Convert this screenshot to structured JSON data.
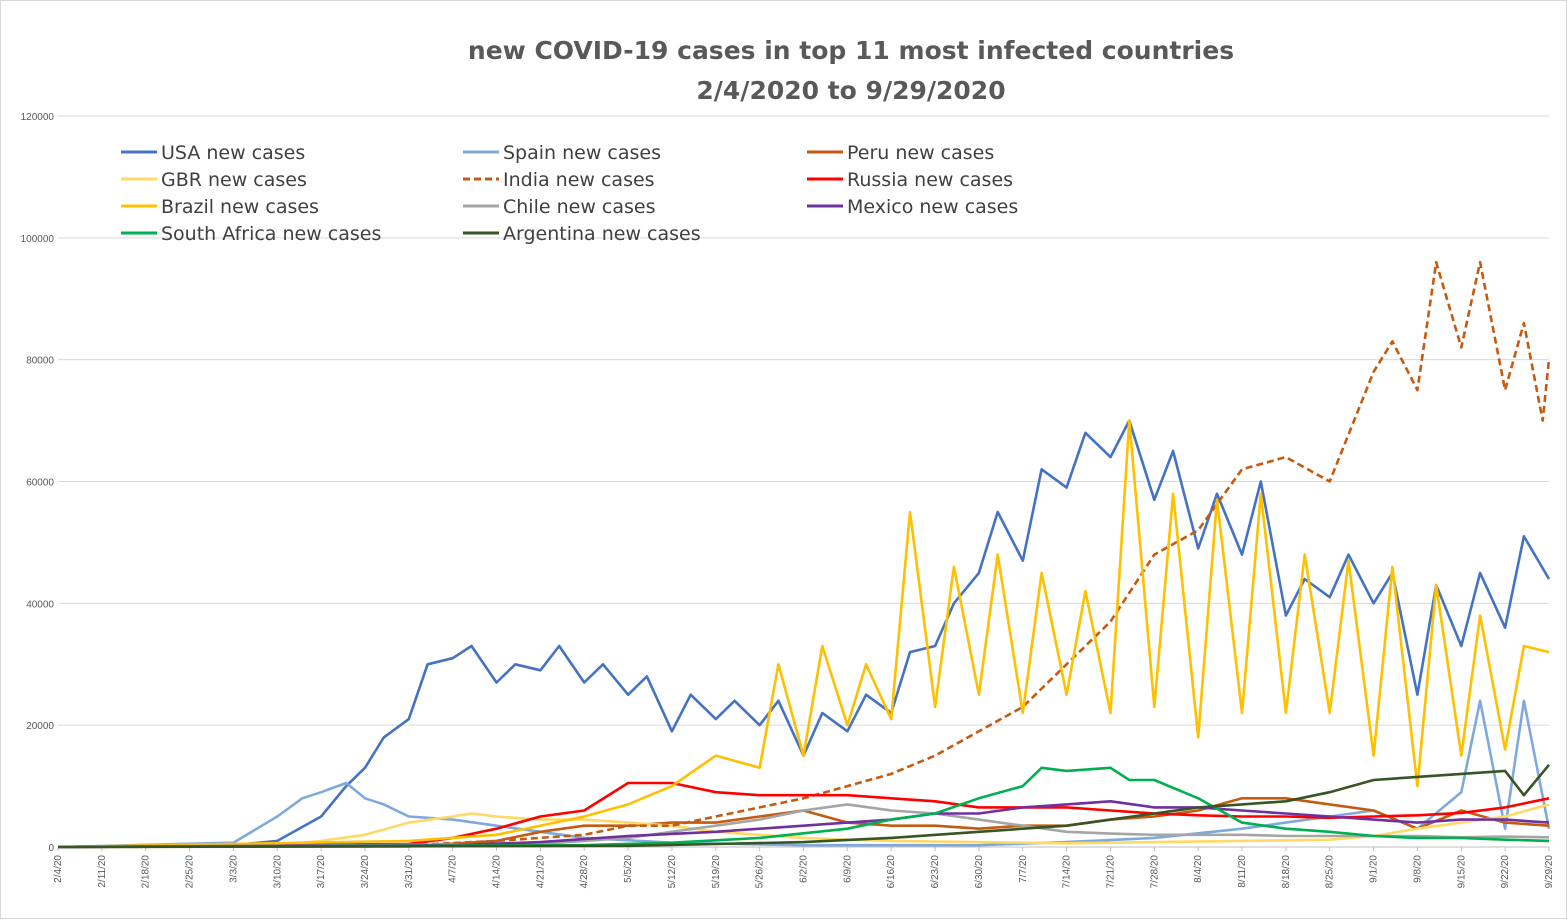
{
  "chart_data": {
    "type": "line",
    "title": "new COVID-19 cases in top 11 most infected countries",
    "subtitle": "2/4/2020 to 9/29/2020",
    "xlabel": "",
    "ylabel": "",
    "x_start": "2/4/20",
    "x_end": "9/29/20",
    "x_tick_labels": [
      "2/4/20",
      "2/11/20",
      "2/18/20",
      "2/25/20",
      "3/3/20",
      "3/10/20",
      "3/17/20",
      "3/24/20",
      "3/31/20",
      "4/7/20",
      "4/14/20",
      "4/21/20",
      "4/28/20",
      "5/5/20",
      "5/12/20",
      "5/19/20",
      "5/26/20",
      "6/2/20",
      "6/9/20",
      "6/16/20",
      "6/23/20",
      "6/30/20",
      "7/7/20",
      "7/14/20",
      "7/21/20",
      "7/28/20",
      "8/4/20",
      "8/11/20",
      "8/18/20",
      "8/25/20",
      "9/1/20",
      "9/8/20",
      "9/15/20",
      "9/22/20",
      "9/29/20"
    ],
    "y_ticks": [
      0,
      20000,
      40000,
      60000,
      80000,
      100000,
      120000
    ],
    "ylim": [
      0,
      120000
    ],
    "grid": true,
    "legend_position": "top-left",
    "series": [
      {
        "name": "USA new cases",
        "color": "#4472c4",
        "dash": false,
        "x": [
          "2/4/20",
          "3/3/20",
          "3/10/20",
          "3/17/20",
          "3/21/20",
          "3/24/20",
          "3/27/20",
          "3/31/20",
          "4/3/20",
          "4/7/20",
          "4/10/20",
          "4/14/20",
          "4/17/20",
          "4/21/20",
          "4/24/20",
          "4/28/20",
          "5/1/20",
          "5/5/20",
          "5/8/20",
          "5/12/20",
          "5/15/20",
          "5/19/20",
          "5/22/20",
          "5/26/20",
          "5/29/20",
          "6/2/20",
          "6/5/20",
          "6/9/20",
          "6/12/20",
          "6/16/20",
          "6/19/20",
          "6/23/20",
          "6/26/20",
          "6/30/20",
          "7/3/20",
          "7/7/20",
          "7/10/20",
          "7/14/20",
          "7/17/20",
          "7/21/20",
          "7/24/20",
          "7/28/20",
          "7/31/20",
          "8/4/20",
          "8/7/20",
          "8/11/20",
          "8/14/20",
          "8/18/20",
          "8/21/20",
          "8/25/20",
          "8/28/20",
          "9/1/20",
          "9/4/20",
          "9/8/20",
          "9/11/20",
          "9/15/20",
          "9/18/20",
          "9/22/20",
          "9/25/20",
          "9/29/20"
        ],
        "y": [
          0,
          300,
          1000,
          5000,
          10000,
          13000,
          18000,
          21000,
          30000,
          31000,
          33000,
          27000,
          30000,
          29000,
          33000,
          27000,
          30000,
          25000,
          28000,
          19000,
          25000,
          21000,
          24000,
          20000,
          24000,
          15000,
          22000,
          19000,
          25000,
          22000,
          32000,
          33000,
          40000,
          45000,
          55000,
          47000,
          62000,
          59000,
          68000,
          64000,
          70000,
          57000,
          65000,
          49000,
          58000,
          48000,
          60000,
          38000,
          44000,
          41000,
          48000,
          40000,
          45000,
          25000,
          43000,
          33000,
          45000,
          36000,
          51000,
          44000
        ]
      },
      {
        "name": "Spain new cases",
        "color": "#7fa9dc",
        "dash": false,
        "x": [
          "2/4/20",
          "3/3/20",
          "3/10/20",
          "3/14/20",
          "3/17/20",
          "3/21/20",
          "3/24/20",
          "3/27/20",
          "3/31/20",
          "4/7/20",
          "4/14/20",
          "4/21/20",
          "4/28/20",
          "5/12/20",
          "6/2/20",
          "6/30/20",
          "7/14/20",
          "7/28/20",
          "8/11/20",
          "8/18/20",
          "8/25/20",
          "9/1/20",
          "9/8/20",
          "9/15/20",
          "9/18/20",
          "9/22/20",
          "9/25/20",
          "9/29/20"
        ],
        "y": [
          0,
          700,
          5000,
          8000,
          9000,
          10500,
          8000,
          7000,
          5000,
          4500,
          3500,
          2500,
          1500,
          700,
          300,
          300,
          800,
          1500,
          3000,
          4000,
          5000,
          6000,
          3000,
          9000,
          24000,
          3000,
          24000,
          3000
        ]
      },
      {
        "name": "Peru new cases",
        "color": "#c55a11",
        "dash": false,
        "x": [
          "2/4/20",
          "3/31/20",
          "4/14/20",
          "4/21/20",
          "4/28/20",
          "5/5/20",
          "5/12/20",
          "5/19/20",
          "5/26/20",
          "6/2/20",
          "6/9/20",
          "6/16/20",
          "6/23/20",
          "6/30/20",
          "7/7/20",
          "7/14/20",
          "7/21/20",
          "7/28/20",
          "8/4/20",
          "8/11/20",
          "8/18/20",
          "8/25/20",
          "9/1/20",
          "9/8/20",
          "9/15/20",
          "9/22/20",
          "9/29/20"
        ],
        "y": [
          0,
          100,
          1000,
          2500,
          3500,
          3500,
          4000,
          4000,
          5000,
          6000,
          4000,
          3500,
          3500,
          3000,
          3500,
          3500,
          4500,
          5000,
          6000,
          8000,
          8000,
          7000,
          6000,
          3000,
          6000,
          4000,
          3500
        ]
      },
      {
        "name": "GBR new cases",
        "color": "#ffd966",
        "dash": false,
        "x": [
          "2/4/20",
          "3/10/20",
          "3/17/20",
          "3/24/20",
          "3/31/20",
          "4/7/20",
          "4/10/20",
          "4/14/20",
          "4/21/20",
          "4/28/20",
          "5/5/20",
          "5/12/20",
          "5/19/20",
          "5/26/20",
          "6/2/20",
          "6/9/20",
          "6/16/20",
          "6/23/20",
          "6/30/20",
          "7/14/20",
          "7/28/20",
          "8/11/20",
          "8/25/20",
          "9/1/20",
          "9/8/20",
          "9/15/20",
          "9/22/20",
          "9/29/20"
        ],
        "y": [
          0,
          300,
          1000,
          2000,
          4000,
          5000,
          5500,
          5000,
          4500,
          4500,
          4000,
          3500,
          2500,
          2000,
          1500,
          1200,
          1000,
          900,
          800,
          600,
          800,
          1000,
          1200,
          1800,
          3000,
          4000,
          5000,
          7000
        ]
      },
      {
        "name": "India new cases",
        "color": "#c55a11",
        "dash": true,
        "x": [
          "2/4/20",
          "3/31/20",
          "4/14/20",
          "4/28/20",
          "5/5/20",
          "5/12/20",
          "5/19/20",
          "5/26/20",
          "6/2/20",
          "6/9/20",
          "6/16/20",
          "6/23/20",
          "6/30/20",
          "7/7/20",
          "7/14/20",
          "7/21/20",
          "7/28/20",
          "8/4/20",
          "8/11/20",
          "8/18/20",
          "8/25/20",
          "9/1/20",
          "9/4/20",
          "9/8/20",
          "9/11/20",
          "9/15/20",
          "9/18/20",
          "9/22/20",
          "9/25/20",
          "9/28/20",
          "9/29/20"
        ],
        "y": [
          0,
          300,
          1000,
          2000,
          3500,
          3500,
          5000,
          6500,
          8000,
          10000,
          12000,
          15000,
          19000,
          23000,
          30000,
          37000,
          48000,
          52000,
          62000,
          64000,
          60000,
          78000,
          83000,
          75000,
          96000,
          82000,
          96000,
          75000,
          86000,
          70000,
          80000
        ]
      },
      {
        "name": "Russia new cases",
        "color": "#ff0000",
        "dash": false,
        "x": [
          "2/4/20",
          "3/31/20",
          "4/7/20",
          "4/14/20",
          "4/21/20",
          "4/28/20",
          "5/5/20",
          "5/12/20",
          "5/19/20",
          "5/26/20",
          "6/2/20",
          "6/9/20",
          "6/16/20",
          "6/23/20",
          "6/30/20",
          "7/7/20",
          "7/14/20",
          "7/21/20",
          "7/28/20",
          "8/4/20",
          "8/11/20",
          "8/18/20",
          "8/25/20",
          "9/1/20",
          "9/8/20",
          "9/15/20",
          "9/22/20",
          "9/29/20"
        ],
        "y": [
          0,
          500,
          1500,
          3000,
          5000,
          6000,
          10500,
          10500,
          9000,
          8500,
          8500,
          8500,
          8000,
          7500,
          6500,
          6500,
          6500,
          6000,
          5500,
          5200,
          5000,
          5000,
          4800,
          5000,
          5200,
          5600,
          6500,
          8000
        ]
      },
      {
        "name": "Brazil new cases",
        "color": "#ffc000",
        "dash": false,
        "x": [
          "2/4/20",
          "3/31/20",
          "4/14/20",
          "4/28/20",
          "5/5/20",
          "5/12/20",
          "5/19/20",
          "5/26/20",
          "5/29/20",
          "6/2/20",
          "6/5/20",
          "6/9/20",
          "6/12/20",
          "6/16/20",
          "6/19/20",
          "6/23/20",
          "6/26/20",
          "6/30/20",
          "7/3/20",
          "7/7/20",
          "7/10/20",
          "7/14/20",
          "7/17/20",
          "7/21/20",
          "7/24/20",
          "7/28/20",
          "7/31/20",
          "8/4/20",
          "8/7/20",
          "8/11/20",
          "8/14/20",
          "8/18/20",
          "8/21/20",
          "8/25/20",
          "8/28/20",
          "9/1/20",
          "9/4/20",
          "9/8/20",
          "9/11/20",
          "9/15/20",
          "9/18/20",
          "9/22/20",
          "9/25/20",
          "9/29/20"
        ],
        "y": [
          0,
          1000,
          2000,
          5000,
          7000,
          10000,
          15000,
          13000,
          30000,
          15000,
          33000,
          20000,
          30000,
          21000,
          55000,
          23000,
          46000,
          25000,
          48000,
          22000,
          45000,
          25000,
          42000,
          22000,
          70000,
          23000,
          58000,
          18000,
          57000,
          22000,
          58000,
          22000,
          48000,
          22000,
          47000,
          15000,
          46000,
          10000,
          43000,
          15000,
          38000,
          16000,
          33000,
          32000
        ]
      },
      {
        "name": "Chile new cases",
        "color": "#a5a5a5",
        "dash": false,
        "x": [
          "2/4/20",
          "4/7/20",
          "4/21/20",
          "5/5/20",
          "5/19/20",
          "5/26/20",
          "6/2/20",
          "6/9/20",
          "6/16/20",
          "6/23/20",
          "6/30/20",
          "7/7/20",
          "7/14/20",
          "7/21/20",
          "7/28/20",
          "8/4/20",
          "8/11/20",
          "8/18/20",
          "8/25/20",
          "9/1/20",
          "9/8/20",
          "9/15/20",
          "9/22/20",
          "9/29/20"
        ],
        "y": [
          0,
          400,
          500,
          1500,
          3500,
          4500,
          6000,
          7000,
          6000,
          5500,
          4500,
          3500,
          2500,
          2200,
          2000,
          2000,
          2000,
          1800,
          1800,
          1800,
          1800,
          1600,
          1700,
          1600
        ]
      },
      {
        "name": "Mexico new cases",
        "color": "#7030a0",
        "dash": false,
        "x": [
          "2/4/20",
          "4/7/20",
          "4/21/20",
          "5/5/20",
          "5/19/20",
          "5/26/20",
          "6/2/20",
          "6/9/20",
          "6/16/20",
          "6/23/20",
          "6/30/20",
          "7/7/20",
          "7/14/20",
          "7/21/20",
          "7/28/20",
          "8/4/20",
          "8/11/20",
          "8/18/20",
          "8/25/20",
          "9/1/20",
          "9/8/20",
          "9/15/20",
          "9/22/20",
          "9/29/20"
        ],
        "y": [
          0,
          300,
          800,
          1800,
          2500,
          3000,
          3500,
          4000,
          4500,
          5500,
          5500,
          6500,
          7000,
          7500,
          6500,
          6500,
          6000,
          5500,
          5000,
          4500,
          4000,
          4500,
          4500,
          4000
        ]
      },
      {
        "name": "South Africa new cases",
        "color": "#00b050",
        "dash": false,
        "x": [
          "2/4/20",
          "4/28/20",
          "5/12/20",
          "5/26/20",
          "6/9/20",
          "6/16/20",
          "6/23/20",
          "6/30/20",
          "7/7/20",
          "7/10/20",
          "7/14/20",
          "7/21/20",
          "7/24/20",
          "7/28/20",
          "8/4/20",
          "8/11/20",
          "8/18/20",
          "8/25/20",
          "9/1/20",
          "9/8/20",
          "9/15/20",
          "9/22/20",
          "9/29/20"
        ],
        "y": [
          0,
          300,
          700,
          1500,
          3000,
          4500,
          5500,
          8000,
          10000,
          13000,
          12500,
          13000,
          11000,
          11000,
          8000,
          4000,
          3000,
          2500,
          1800,
          1500,
          1500,
          1200,
          1000
        ]
      },
      {
        "name": "Argentina new cases",
        "color": "#375623",
        "dash": false,
        "x": [
          "2/4/20",
          "5/5/20",
          "5/19/20",
          "6/2/20",
          "6/16/20",
          "6/30/20",
          "7/14/20",
          "7/28/20",
          "8/4/20",
          "8/11/20",
          "8/18/20",
          "8/25/20",
          "9/1/20",
          "9/8/20",
          "9/15/20",
          "9/22/20",
          "9/25/20",
          "9/29/20"
        ],
        "y": [
          0,
          200,
          500,
          800,
          1500,
          2500,
          3500,
          5500,
          6500,
          7000,
          7500,
          9000,
          11000,
          11500,
          12000,
          12500,
          8500,
          13500
        ]
      }
    ]
  }
}
